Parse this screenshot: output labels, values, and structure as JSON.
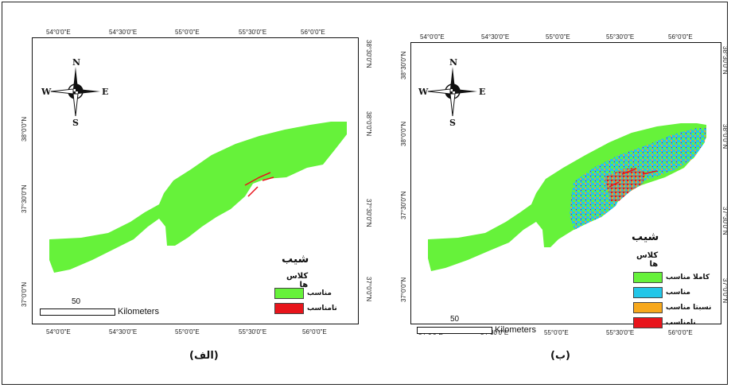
{
  "colors": {
    "suitable_green": "#66f23a",
    "unsuitable_red": "#e8141b",
    "cyan": "#22c6e8",
    "orange": "#f7a81c"
  },
  "left_map": {
    "panel_label": "(الف)",
    "top_ticks": [
      "54°0'0\"E",
      "54°30'0\"E",
      "55°0'0\"E",
      "55°30'0\"E",
      "56°0'0\"E"
    ],
    "bottom_ticks": [
      "54°0'0\"E",
      "54°30'0\"E",
      "55°0'0\"E",
      "55°30'0\"E",
      "56°0'0\"E"
    ],
    "left_ticks": [
      "38°0'0\"N",
      "37°30'0\"N",
      "37°0'0\"N"
    ],
    "right_ticks": [
      "38°30'0\"N",
      "38°0'0\"N",
      "37°30'0\"N",
      "37°0'0\"N"
    ],
    "legend": {
      "title": "شیب",
      "subtitle": "کلاس ها",
      "items": [
        {
          "label": "مناسب",
          "color": "#66f23a"
        },
        {
          "label": "نامناسب",
          "color": "#e8141b"
        }
      ]
    },
    "scale": {
      "value": "50",
      "unit": "Kilometers"
    },
    "compass": {
      "n": "N",
      "s": "S",
      "e": "E",
      "w": "W"
    }
  },
  "right_map": {
    "panel_label": "(ب)",
    "top_ticks": [
      "54°0'0\"E",
      "54°30'0\"E",
      "55°0'0\"E",
      "55°30'0\"E",
      "56°0'0\"E"
    ],
    "bottom_ticks": [
      "54°0'0\"E",
      "54°30'0\"E",
      "55°0'0\"E",
      "55°30'0\"E",
      "56°0'0\"E"
    ],
    "left_ticks": [
      "38°30'0\"N",
      "38°0'0\"N",
      "37°30'0\"N",
      "37°0'0\"N"
    ],
    "right_ticks": [
      "38°30'0\"N",
      "38°0'0\"N",
      "37°30'0\"N",
      "37°0'0\"N"
    ],
    "legend": {
      "title": "شیب",
      "subtitle": "کلاس ها",
      "items": [
        {
          "label": "کاملا مناسب",
          "color": "#66f23a"
        },
        {
          "label": "مناسب",
          "color": "#22c6e8"
        },
        {
          "label": "نسبتا مناسب",
          "color": "#f7a81c"
        },
        {
          "label": "نامناسب",
          "color": "#e8141b"
        }
      ]
    },
    "scale": {
      "value": "50",
      "unit": "Kilometers"
    },
    "compass": {
      "n": "N",
      "s": "S",
      "e": "E",
      "w": "W"
    }
  }
}
